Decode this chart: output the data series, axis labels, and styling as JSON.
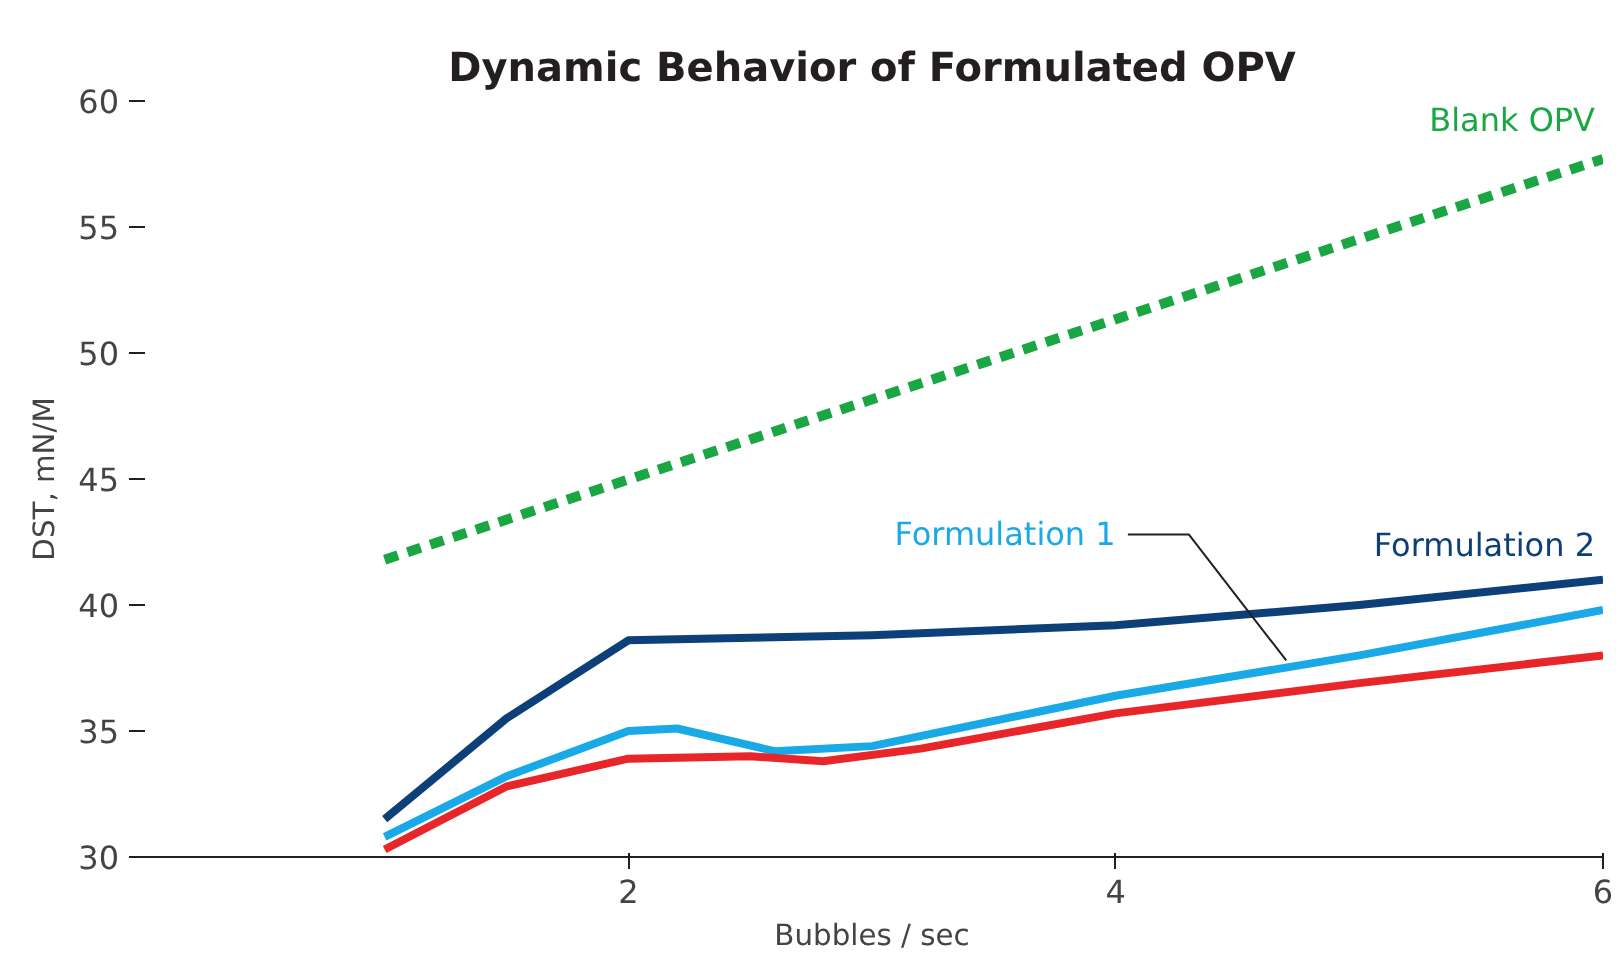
{
  "chart_data": {
    "type": "line",
    "title": "Dynamic Behavior of Formulated OPV",
    "xlabel": "Bubbles / sec",
    "ylabel": "DST, mN/M",
    "xlim": [
      0,
      6
    ],
    "xticks": [
      2,
      4,
      6
    ],
    "ylim": [
      30,
      60
    ],
    "yticks": [
      30,
      35,
      40,
      45,
      50,
      55,
      60
    ],
    "grid": false,
    "marker": "none",
    "series": [
      {
        "name": "Blank OPV",
        "color": "#1aa642",
        "line_style": "dashed",
        "x": [
          1,
          6
        ],
        "values": [
          41.8,
          57.7
        ]
      },
      {
        "name": "Formulation 2",
        "color": "#0d3f78",
        "x": [
          1,
          1.5,
          2,
          2.5,
          3,
          4,
          5,
          6
        ],
        "values": [
          31.5,
          35.5,
          38.6,
          38.7,
          38.8,
          39.2,
          40,
          41
        ]
      },
      {
        "name": "Formulation 1",
        "color": "#19a9e6",
        "x": [
          1,
          1.5,
          2,
          2.2,
          2.6,
          3,
          4,
          5,
          6
        ],
        "values": [
          30.8,
          33.2,
          35,
          35.1,
          34.2,
          34.4,
          36.4,
          38,
          39.8
        ]
      },
      {
        "color": "#e8262a",
        "x": [
          1,
          1.5,
          2,
          2.5,
          2.8,
          3.2,
          4,
          5,
          6
        ],
        "values": [
          30.3,
          32.8,
          33.9,
          34,
          33.8,
          34.3,
          35.7,
          36.9,
          38
        ]
      }
    ]
  }
}
